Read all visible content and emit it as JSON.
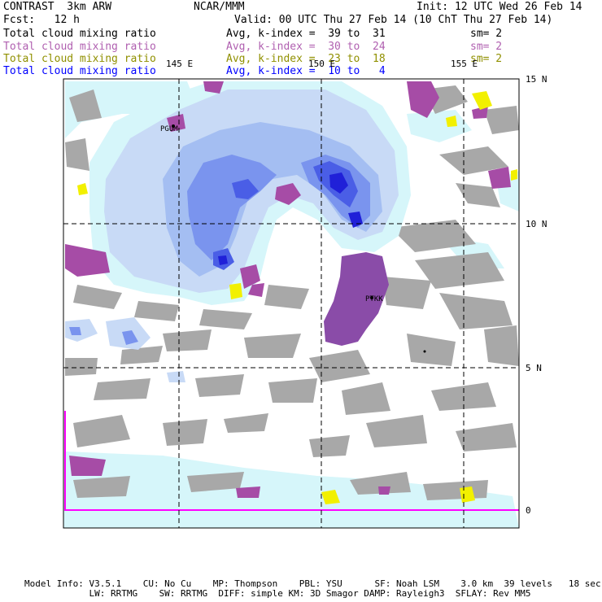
{
  "header": {
    "line1_left": "CONTRAST  3km ARW",
    "line1_mid": "NCAR/MMM",
    "line1_right": "Init: 12 UTC Wed 26 Feb 14",
    "line2_left": "Fcst:   12 h",
    "line2_right": "Valid: 00 UTC Thu 27 Feb 14 (10 ChT Thu 27 Feb 14)"
  },
  "legend": [
    {
      "label": "Total cloud mixing ratio",
      "stat": "Avg, k-index =  39 to  31",
      "sm": "sm= 2",
      "color": "#000000"
    },
    {
      "label": "Total cloud mixing ratio",
      "stat": "Avg, k-index =  30 to  24",
      "sm": "sm= 2",
      "color": "#b060b0"
    },
    {
      "label": "Total cloud mixing ratio",
      "stat": "Avg, k-index =  23 to  18",
      "sm": "sm= 2",
      "color": "#909000"
    },
    {
      "label": "Total cloud mixing ratio",
      "stat": "Avg, k-index =  10 to   4",
      "sm": "",
      "color": "#0000ff"
    }
  ],
  "map": {
    "lon_labels": [
      "145 E",
      "150 E",
      "155 E"
    ],
    "lat_labels": [
      "15 N",
      "10 N",
      "5 N",
      "0"
    ],
    "stations": [
      "PGUM",
      "PTKK"
    ],
    "colors": {
      "gray": "#a8a8a8",
      "magenta": "#a64ca6",
      "purple": "#8a4ca8",
      "yellow": "#f2f000",
      "lightcyan": "#d6f6fa",
      "blue1": "#c8daf6",
      "blue2": "#a4bef2",
      "blue3": "#7a94ee",
      "blue4": "#4a5ee6",
      "blue5": "#2020d8"
    }
  },
  "footer": {
    "line1": "Model Info: V3.5.1    CU: No Cu    MP: Thompson    PBL: YSU      SF: Noah LSM    3.0 km  39 levels   18 sec",
    "line2": "            LW: RRTMG    SW: RRTMG  DIFF: simple KM: 3D Smagor DAMP: Rayleigh3  SFLAY: Rev MM5"
  }
}
